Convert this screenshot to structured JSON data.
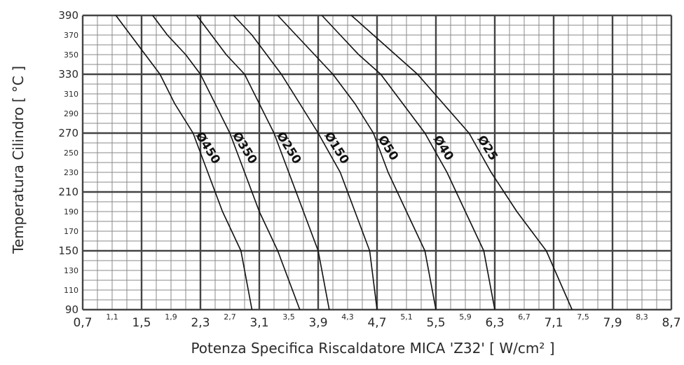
{
  "chart_data": {
    "type": "line",
    "xlabel": "Potenza  Specifica Riscaldatore MICA 'Z32' [ W/cm² ]",
    "ylabel": "Temperatura Cilindro [ °C ]",
    "xlim": [
      0.7,
      8.7
    ],
    "ylim": [
      90,
      390
    ],
    "grid": true,
    "x_ticks_major": [
      "0,7",
      "1,5",
      "2,3",
      "3,1",
      "3,9",
      "4,7",
      "5,5",
      "6,3",
      "7,1",
      "7,9",
      "8,7"
    ],
    "x_ticks_minor": [
      "1,1",
      "1,9",
      "2,7",
      "3,5",
      "4,3",
      "5,1",
      "5,9",
      "6,7",
      "7,5",
      "8,3"
    ],
    "y_ticks_major": [
      "90",
      "150",
      "210",
      "270",
      "330",
      "390"
    ],
    "y_ticks_minor": [
      "110",
      "130",
      "170",
      "190",
      "230",
      "250",
      "290",
      "310",
      "350",
      "370"
    ],
    "series": [
      {
        "name": "Ø450",
        "x": [
          3.0,
          2.85,
          2.6,
          2.4,
          2.2,
          1.95,
          1.75,
          1.55,
          1.35,
          1.15
        ],
        "y": [
          90,
          150,
          190,
          230,
          270,
          300,
          330,
          350,
          370,
          390
        ]
      },
      {
        "name": "Ø350",
        "x": [
          3.65,
          3.35,
          3.1,
          2.9,
          2.7,
          2.5,
          2.3,
          2.1,
          1.85,
          1.65
        ],
        "y": [
          90,
          150,
          190,
          230,
          270,
          300,
          330,
          350,
          370,
          390
        ]
      },
      {
        "name": "Ø250",
        "x": [
          4.05,
          3.9,
          3.7,
          3.5,
          3.3,
          3.1,
          2.9,
          2.65,
          2.45,
          2.25
        ],
        "y": [
          90,
          150,
          190,
          230,
          270,
          300,
          330,
          350,
          370,
          390
        ]
      },
      {
        "name": "Ø150",
        "x": [
          4.7,
          4.6,
          4.4,
          4.2,
          3.9,
          3.65,
          3.4,
          3.2,
          3.0,
          2.75
        ],
        "y": [
          90,
          150,
          190,
          230,
          270,
          300,
          330,
          350,
          370,
          390
        ]
      },
      {
        "name": "Ø50",
        "x": [
          5.5,
          5.35,
          5.1,
          4.85,
          4.65,
          4.4,
          4.1,
          3.85,
          3.6,
          3.35
        ],
        "y": [
          90,
          150,
          190,
          230,
          270,
          300,
          330,
          350,
          370,
          390
        ]
      },
      {
        "name": "Ø40",
        "x": [
          6.3,
          6.15,
          5.9,
          5.65,
          5.35,
          5.05,
          4.75,
          4.45,
          4.2,
          3.95
        ],
        "y": [
          90,
          150,
          190,
          230,
          270,
          300,
          330,
          350,
          370,
          390
        ]
      },
      {
        "name": "Ø25",
        "x": [
          7.35,
          7.0,
          6.6,
          6.25,
          5.95,
          5.6,
          5.25,
          4.95,
          4.65,
          4.35
        ],
        "y": [
          90,
          150,
          190,
          230,
          270,
          300,
          330,
          350,
          370,
          390
        ]
      }
    ]
  }
}
